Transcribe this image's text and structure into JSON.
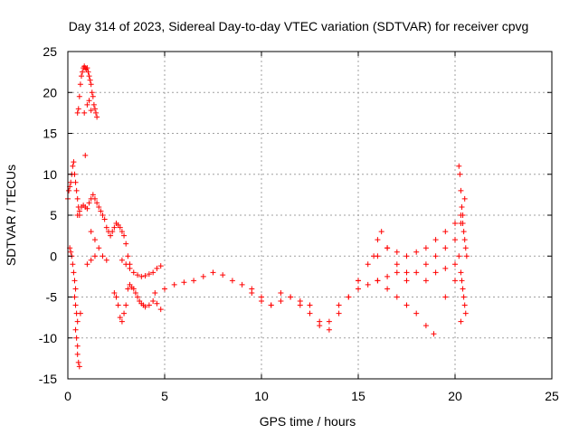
{
  "chart_data": {
    "type": "scatter",
    "title": "Day 314 of 2023, Sidereal Day-to-day VTEC variation (SDTVAR) for receiver cpvg",
    "xlabel": "GPS time / hours",
    "ylabel": "SDTVAR / TECUs",
    "xlim": [
      0,
      25
    ],
    "ylim": [
      -15,
      25
    ],
    "xticks": [
      0,
      5,
      10,
      15,
      20,
      25
    ],
    "yticks": [
      -15,
      -10,
      -5,
      0,
      5,
      10,
      15,
      20,
      25
    ],
    "grid": true,
    "marker": "+",
    "color": "#ff0000",
    "series": [
      {
        "name": "early-scatter",
        "x": [
          0.0,
          0.05,
          0.1,
          0.15,
          0.2,
          0.25,
          0.3,
          0.35,
          0.4,
          0.45,
          0.5,
          0.55,
          0.6,
          0.1,
          0.15,
          0.2,
          0.25,
          0.3,
          0.35,
          0.4,
          0.35,
          0.4,
          0.45,
          0.5,
          0.4,
          0.45,
          0.5,
          0.5,
          0.55,
          0.6,
          0.65
        ],
        "y": [
          7,
          8,
          8.5,
          9,
          10,
          11,
          11.5,
          10,
          9,
          8,
          7,
          6,
          5,
          1,
          0.5,
          0,
          -1,
          -2,
          -3,
          -4,
          -5,
          -6,
          -7,
          -8,
          -9,
          -10,
          -11,
          -12,
          -13,
          -13.5,
          -7
        ]
      },
      {
        "name": "early-peak",
        "x": [
          0.5,
          0.55,
          0.6,
          0.65,
          0.7,
          0.75,
          0.8,
          0.85,
          0.9,
          0.95,
          1.0,
          1.05,
          1.1,
          1.15,
          1.2,
          1.25,
          1.3,
          1.35,
          1.4,
          1.45,
          1.5,
          0.85,
          0.9,
          1.0,
          1.1,
          1.2
        ],
        "y": [
          17.5,
          18,
          19.5,
          21,
          22,
          22.5,
          23,
          23.2,
          23,
          22.8,
          23,
          22.5,
          22,
          21.5,
          21,
          20,
          19.5,
          18.5,
          18,
          17.5,
          17,
          17.5,
          12.3,
          18.5,
          19,
          17.8
        ]
      },
      {
        "name": "morning-cluster",
        "x": [
          0.5,
          0.6,
          0.7,
          0.8,
          0.9,
          1.0,
          1.1,
          1.2,
          1.3,
          1.4,
          1.5,
          1.6,
          1.7,
          1.8,
          1.9,
          2.0,
          2.1,
          2.2,
          2.3,
          2.4,
          2.5,
          2.6,
          2.7,
          2.8,
          2.9,
          3.0,
          3.1,
          3.2,
          1.2,
          1.4,
          1.6,
          1.8,
          2.0,
          1.0,
          1.2,
          1.4
        ],
        "y": [
          5,
          5.5,
          6,
          6.2,
          6,
          5.8,
          6.5,
          7,
          7.5,
          7,
          6.5,
          6,
          5.5,
          5,
          4.5,
          3.5,
          3,
          2.5,
          3,
          3.5,
          4,
          3.8,
          3.5,
          3,
          2.5,
          1.5,
          0,
          -1,
          3,
          2,
          1,
          0,
          -0.5,
          -1,
          -0.5,
          0
        ]
      },
      {
        "name": "morning-dip",
        "x": [
          2.4,
          2.5,
          2.6,
          2.7,
          2.8,
          2.9,
          3.0,
          3.1,
          3.2,
          3.3,
          3.4,
          3.5,
          3.6,
          3.7,
          3.8,
          3.9,
          4.0,
          4.2,
          4.4,
          4.6,
          4.8
        ],
        "y": [
          -4.5,
          -5,
          -6,
          -7.5,
          -8,
          -7,
          -6,
          -4,
          -3.5,
          -3.8,
          -4,
          -4.5,
          -5,
          -5.5,
          -5.8,
          -6,
          -6.2,
          -6,
          -5.5,
          -5.8,
          -6.5
        ]
      },
      {
        "name": "ridge-upper",
        "x": [
          2.8,
          3.0,
          3.2,
          3.4,
          3.6,
          3.8,
          4.0,
          4.2,
          4.4,
          4.6,
          4.8
        ],
        "y": [
          -0.5,
          -1,
          -1.5,
          -2,
          -2.3,
          -2.5,
          -2.4,
          -2.2,
          -2,
          -1.5,
          -1.2
        ]
      },
      {
        "name": "day-trend",
        "x": [
          4.5,
          5.0,
          5.5,
          6.0,
          6.5,
          7.0,
          7.5,
          8.0,
          8.5,
          9.0,
          9.5,
          10.0,
          10.5,
          11.0,
          11.5,
          12.0,
          12.5,
          13.0,
          13.5,
          14.0,
          14.5,
          15.0,
          15.5,
          16.0,
          16.5,
          17.0,
          17.5,
          18.0,
          18.5,
          19.0,
          19.5,
          20.0,
          20.3
        ],
        "y": [
          -4.5,
          -4,
          -3.5,
          -3.2,
          -3,
          -2.5,
          -2,
          -2.3,
          -3,
          -3.5,
          -4.5,
          -5,
          -6,
          -5.5,
          -5,
          -6,
          -7,
          -8.5,
          -8,
          -6,
          -5,
          -4,
          -3.5,
          -3,
          -2.5,
          -2,
          -3,
          -2,
          -1,
          0,
          1,
          2,
          4
        ]
      },
      {
        "name": "midday-branch",
        "x": [
          9.5,
          10.0,
          10.5,
          11.0,
          11.5,
          12.0,
          12.5,
          13.0,
          13.5,
          14.0,
          14.5,
          15.0
        ],
        "y": [
          -4,
          -5.5,
          -6,
          -4.5,
          -5,
          -5.5,
          -6,
          -8,
          -9,
          -7,
          -5,
          -3
        ]
      },
      {
        "name": "evening-up",
        "x": [
          15.0,
          15.5,
          16.0,
          16.5,
          17.0,
          17.5,
          18.0,
          18.5,
          19.0,
          19.5,
          20.0,
          20.3
        ],
        "y": [
          -3,
          -1,
          0,
          1,
          0.5,
          0,
          0.5,
          1,
          2,
          3,
          4,
          5
        ]
      },
      {
        "name": "evening-down",
        "x": [
          16.0,
          16.5,
          17.0,
          17.5,
          18.0,
          18.5,
          18.9
        ],
        "y": [
          -3,
          -4,
          -5,
          -6,
          -7,
          -8.5,
          -9.5
        ]
      },
      {
        "name": "evening-spike",
        "x": [
          15.8,
          16.0,
          16.2,
          16.5,
          17.0,
          17.5
        ],
        "y": [
          0,
          2,
          3,
          1,
          -1,
          -2
        ]
      },
      {
        "name": "late-scatter",
        "x": [
          20.2,
          20.25,
          20.3,
          20.35,
          20.4,
          20.45,
          20.5,
          20.55,
          20.6,
          20.3,
          20.35,
          20.4,
          20.45,
          20.5,
          20.55,
          20.3,
          20.4,
          20.5
        ],
        "y": [
          11,
          10,
          8,
          6,
          4,
          3,
          2,
          1,
          0,
          -2,
          -3,
          -4,
          -5,
          -6,
          -7,
          -8,
          5,
          7
        ]
      },
      {
        "name": "late-branch",
        "x": [
          18.5,
          19.0,
          19.5,
          20.0,
          20.2,
          19.5,
          20.0
        ],
        "y": [
          -3,
          -2,
          -1.5,
          -1,
          0,
          -5,
          -3
        ]
      }
    ]
  }
}
